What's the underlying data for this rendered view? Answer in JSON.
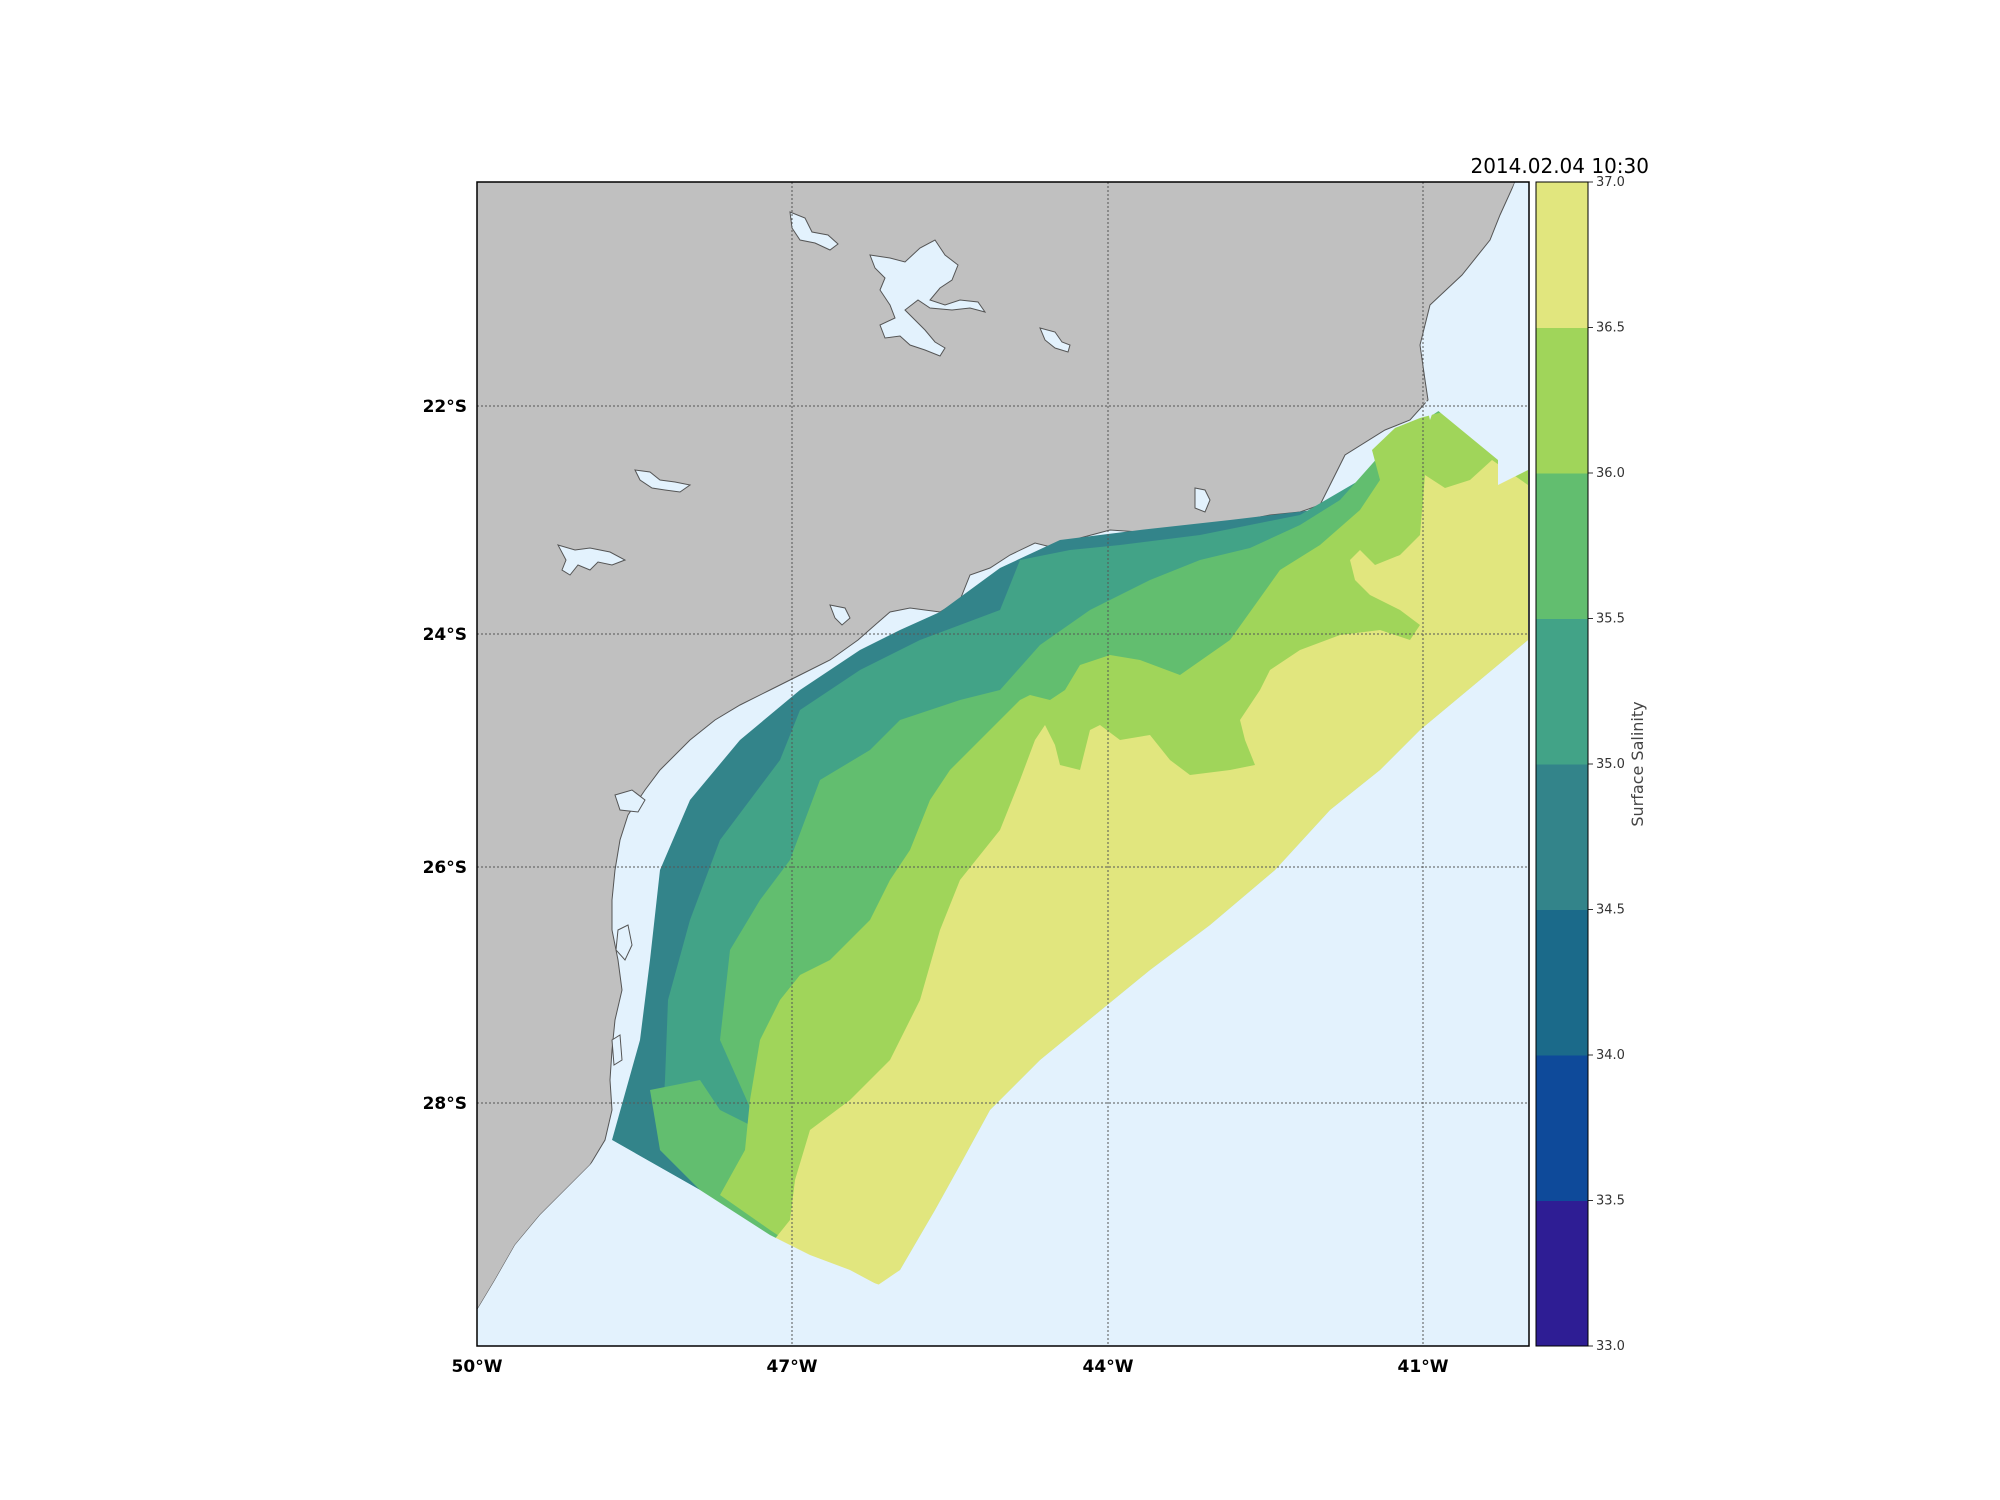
{
  "map": {
    "timestamp": "2014.02.04 10:30",
    "lat_labels": [
      "22°S",
      "24°S",
      "26°S",
      "28°S"
    ],
    "lon_labels": [
      "50°W",
      "47°W",
      "44°W",
      "41°W"
    ],
    "colors": {
      "land": "#c0c0c0",
      "ocean": "#e3f2fd",
      "coast": "#555555",
      "grid": "#555555"
    }
  },
  "colorbar": {
    "label": "Surface Salinity",
    "ticks": [
      "33.0",
      "33.5",
      "34.0",
      "34.5",
      "35.0",
      "35.5",
      "36.0",
      "36.5",
      "37.0"
    ],
    "bins": [
      {
        "range": "33.0-33.5",
        "color": "#2e1d94"
      },
      {
        "range": "33.5-34.0",
        "color": "#0e4a9a"
      },
      {
        "range": "34.0-34.5",
        "color": "#1b6a8a"
      },
      {
        "range": "34.5-35.0",
        "color": "#33848a"
      },
      {
        "range": "35.0-35.5",
        "color": "#42a387"
      },
      {
        "range": "35.5-36.0",
        "color": "#62be6f"
      },
      {
        "range": "36.0-36.5",
        "color": "#a0d55a"
      },
      {
        "range": "36.5-37.0",
        "color": "#e1e67e"
      }
    ]
  }
}
